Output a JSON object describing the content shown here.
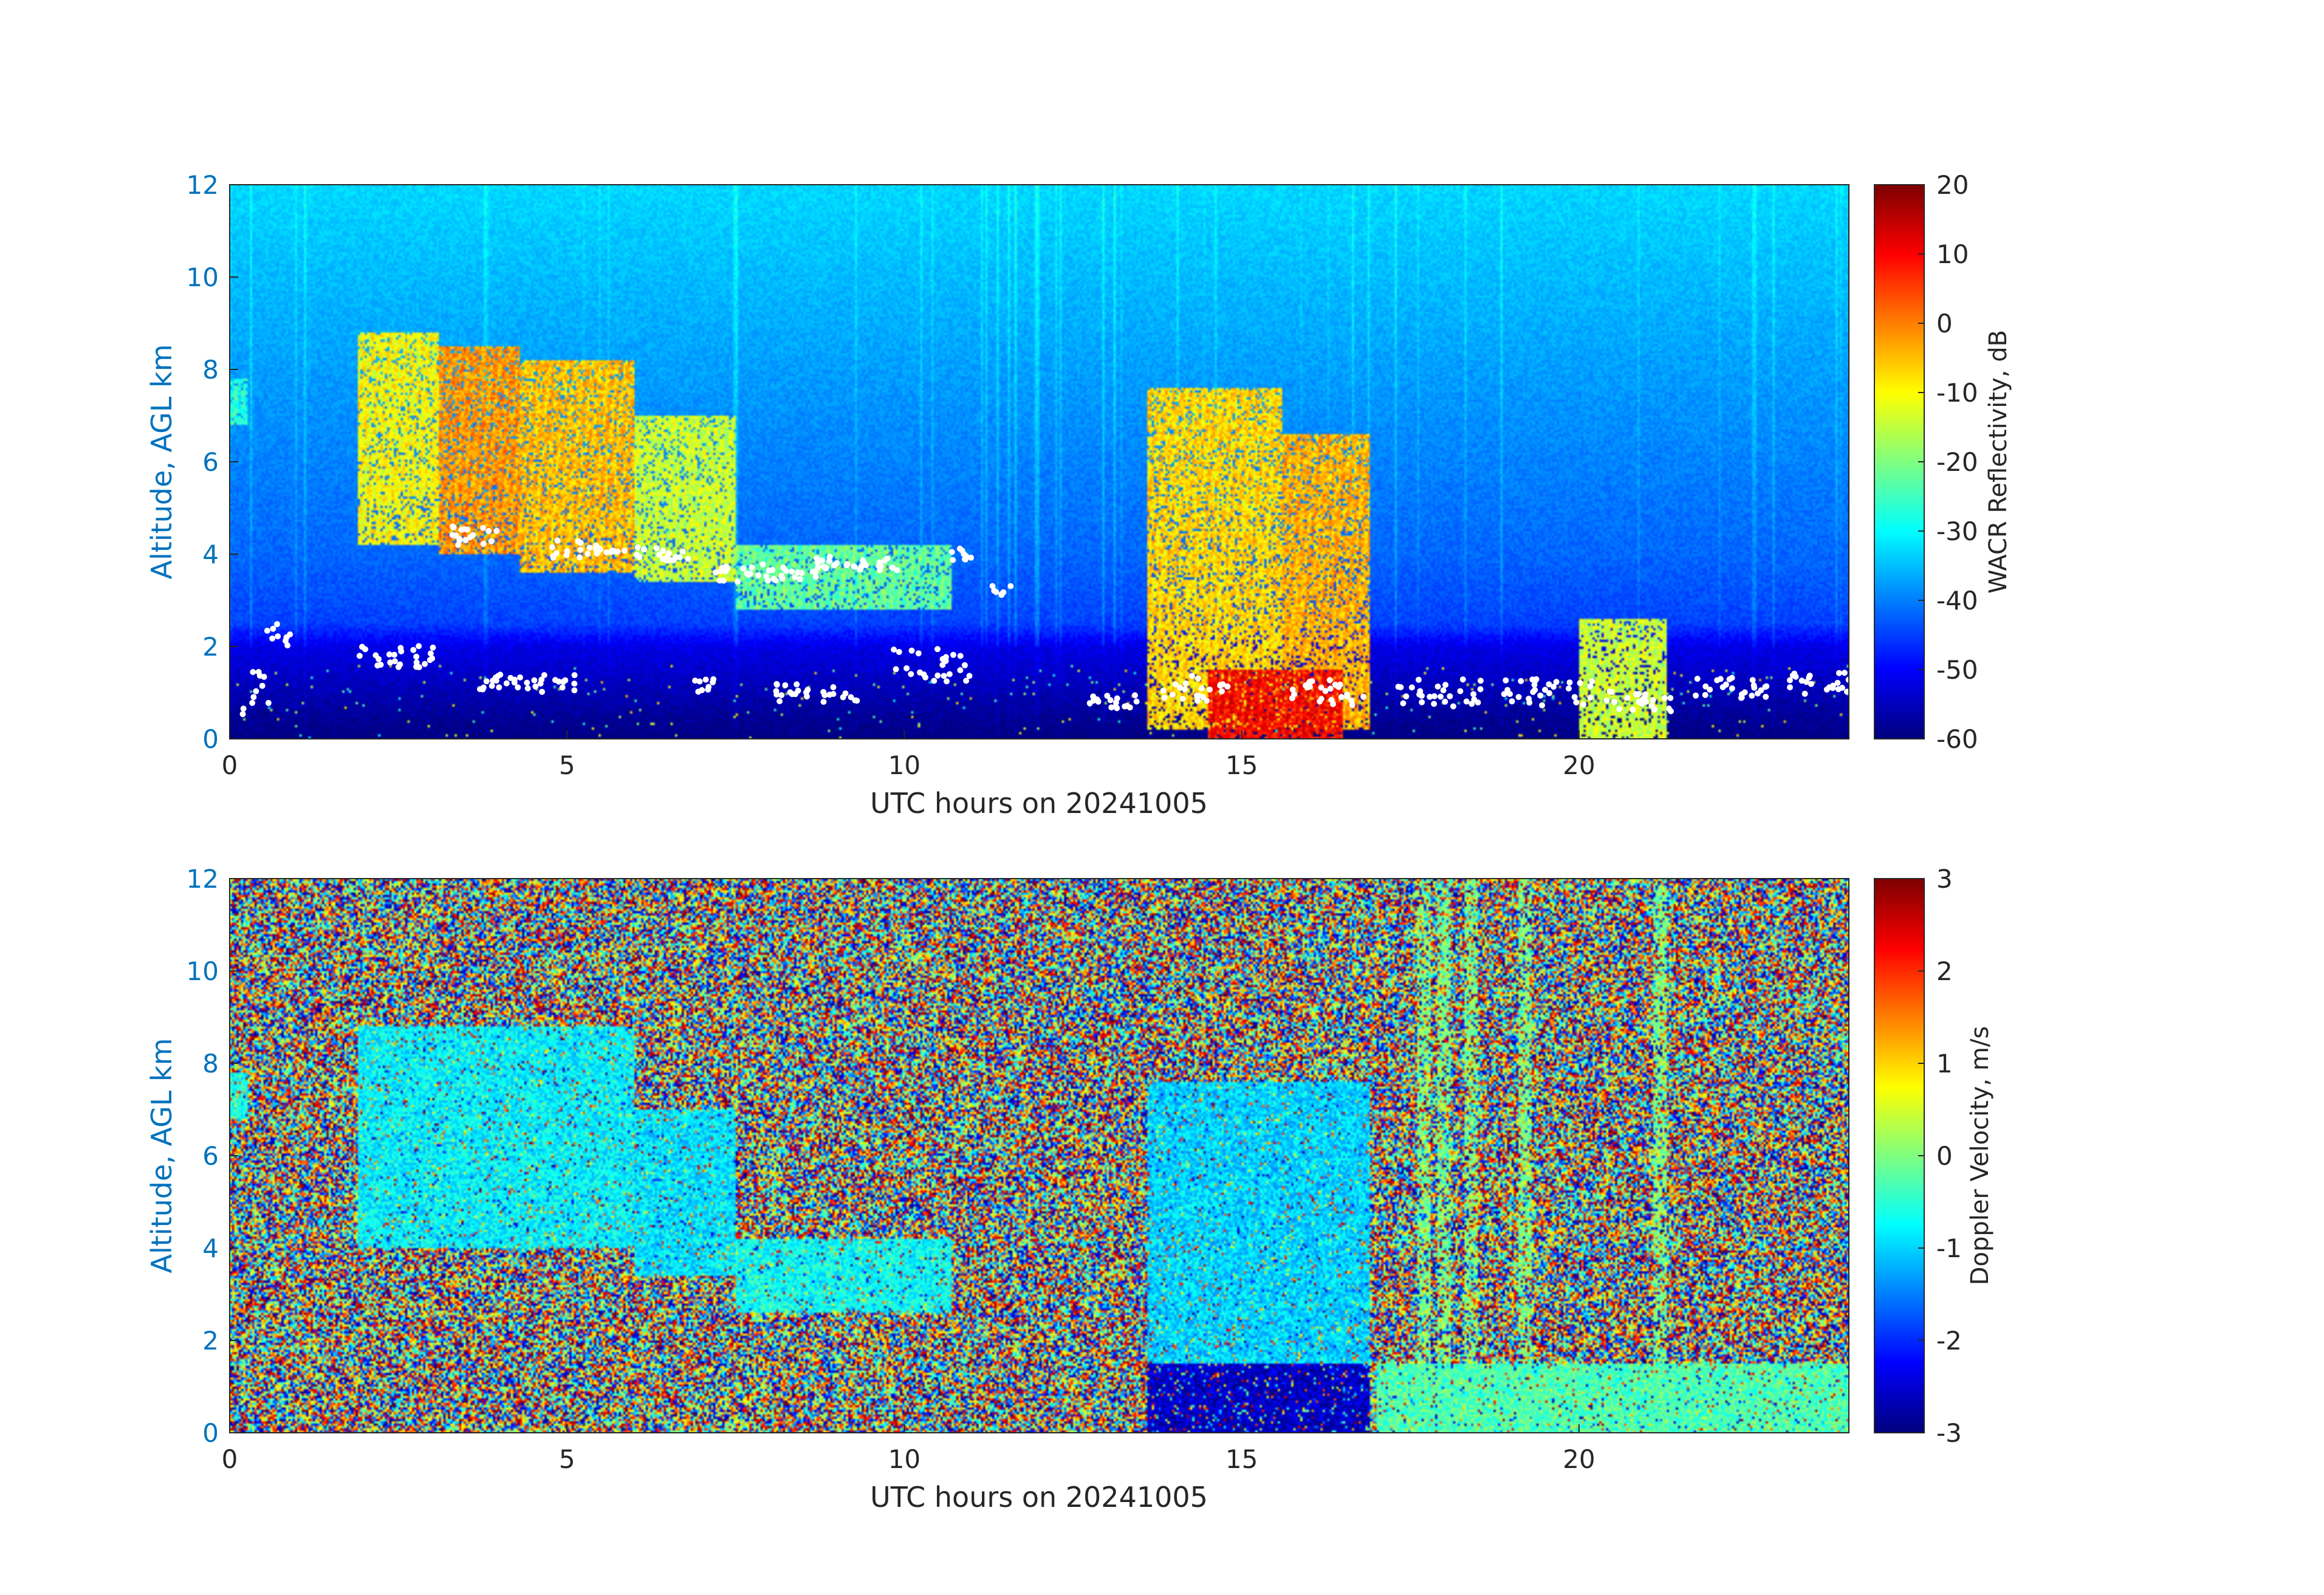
{
  "chart_data": [
    {
      "type": "heatmap",
      "xlabel": "UTC hours on 20241005",
      "ylabel": "Altitude, AGL km",
      "xlim": [
        0,
        24
      ],
      "ylim": [
        0,
        12
      ],
      "x_ticks": [
        "0",
        "5",
        "10",
        "15",
        "20"
      ],
      "y_ticks": [
        "0",
        "2",
        "4",
        "6",
        "8",
        "10",
        "12"
      ],
      "colorbar": {
        "label": "WACR Reflectivity, dB",
        "range": [
          -60,
          20
        ],
        "ticks": [
          "20",
          "10",
          "0",
          "-10",
          "-20",
          "-30",
          "-40",
          "-50",
          "-60"
        ],
        "colormap": "jet"
      },
      "background_levels": [
        {
          "alt_km": 12,
          "dB": -33
        },
        {
          "alt_km": 4,
          "dB": -42
        },
        {
          "alt_km": 2.5,
          "dB": -45
        },
        {
          "alt_km": 2,
          "dB": -52
        },
        {
          "alt_km": 0,
          "dB": -60
        }
      ],
      "cloud_regions": [
        {
          "t0": 0.0,
          "t1": 0.25,
          "z0": 6.8,
          "z1": 7.8,
          "dB": -25
        },
        {
          "t0": 1.9,
          "t1": 3.1,
          "z0": 4.2,
          "z1": 8.8,
          "dB": -8
        },
        {
          "t0": 3.1,
          "t1": 4.3,
          "z0": 4.0,
          "z1": 8.5,
          "dB": 0
        },
        {
          "t0": 4.3,
          "t1": 6.0,
          "z0": 3.6,
          "z1": 8.2,
          "dB": -3
        },
        {
          "t0": 6.0,
          "t1": 7.5,
          "z0": 3.4,
          "z1": 7.0,
          "dB": -12
        },
        {
          "t0": 7.5,
          "t1": 10.7,
          "z0": 2.8,
          "z1": 4.2,
          "dB": -20
        },
        {
          "t0": 13.6,
          "t1": 15.6,
          "z0": 0.2,
          "z1": 7.6,
          "dB": -5
        },
        {
          "t0": 15.6,
          "t1": 16.9,
          "z0": 0.2,
          "z1": 6.6,
          "dB": -2
        },
        {
          "t0": 14.5,
          "t1": 16.5,
          "z0": 0.0,
          "z1": 1.5,
          "dB": 12
        },
        {
          "t0": 20.0,
          "t1": 21.3,
          "z0": 0.0,
          "z1": 2.6,
          "dB": -12
        }
      ],
      "white_markers_note": ""
    },
    {
      "type": "heatmap",
      "xlabel": "UTC hours on 20241005",
      "ylabel": "Altitude, AGL km",
      "xlim": [
        0,
        24
      ],
      "ylim": [
        0,
        12
      ],
      "x_ticks": [
        "0",
        "5",
        "10",
        "15",
        "20"
      ],
      "y_ticks": [
        "0",
        "2",
        "4",
        "6",
        "8",
        "10",
        "12"
      ],
      "colorbar": {
        "label": "Doppler Velocity, m/s",
        "range": [
          -3,
          3
        ],
        "ticks": [
          "3",
          "2",
          "1",
          "0",
          "-1",
          "-2",
          "-3"
        ],
        "colormap": "jet"
      },
      "background": "noise (random velocities)",
      "cloud_regions": [
        {
          "t0": 0.0,
          "t1": 0.25,
          "z0": 6.8,
          "z1": 7.8,
          "ms": -0.6
        },
        {
          "t0": 1.9,
          "t1": 6.0,
          "z0": 4.0,
          "z1": 8.8,
          "ms": -0.8
        },
        {
          "t0": 6.0,
          "t1": 7.5,
          "z0": 3.4,
          "z1": 7.0,
          "ms": -0.9
        },
        {
          "t0": 7.5,
          "t1": 10.7,
          "z0": 2.6,
          "z1": 4.2,
          "ms": -0.7
        },
        {
          "t0": 13.6,
          "t1": 16.9,
          "z0": 1.5,
          "z1": 7.6,
          "ms": -1.0
        },
        {
          "t0": 13.6,
          "t1": 16.9,
          "z0": 0.0,
          "z1": 1.5,
          "ms": -2.6
        },
        {
          "t0": 17.0,
          "t1": 24.0,
          "z0": 0.0,
          "z1": 1.5,
          "ms": -0.3
        }
      ],
      "vertical_bands_hours": [
        17.7,
        18.0,
        18.4,
        19.2,
        21.2
      ]
    }
  ]
}
